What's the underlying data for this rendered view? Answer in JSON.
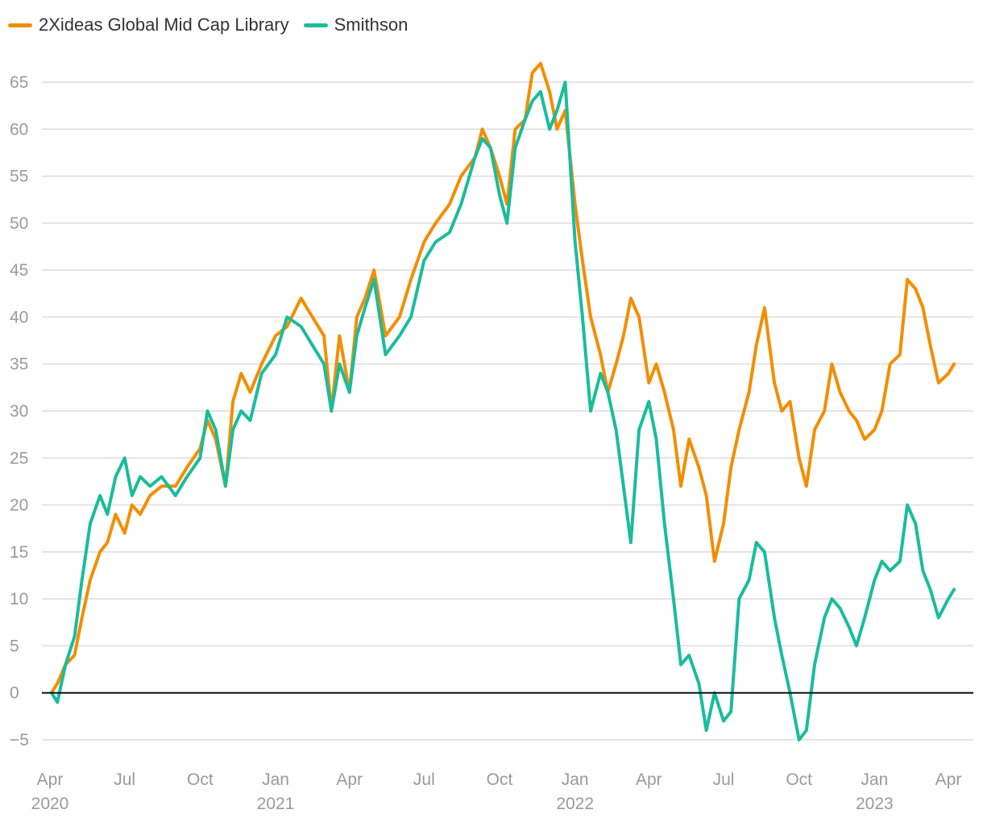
{
  "chart_data": {
    "type": "line",
    "title": "",
    "xlabel": "",
    "ylabel": "",
    "ylim": [
      -7,
      70
    ],
    "yticks": [
      -5,
      0,
      5,
      10,
      15,
      20,
      25,
      30,
      35,
      40,
      45,
      50,
      55,
      60,
      65
    ],
    "zero_line": true,
    "grid": "horizontal",
    "legend_position": "top-left",
    "x_tick_labels": [
      {
        "month": "Apr",
        "year": "2020",
        "date": "2020-04-01"
      },
      {
        "month": "Jul",
        "year": "",
        "date": "2020-07-01"
      },
      {
        "month": "Oct",
        "year": "",
        "date": "2020-10-01"
      },
      {
        "month": "Jan",
        "year": "2021",
        "date": "2021-01-01"
      },
      {
        "month": "Apr",
        "year": "",
        "date": "2021-04-01"
      },
      {
        "month": "Jul",
        "year": "",
        "date": "2021-07-01"
      },
      {
        "month": "Oct",
        "year": "",
        "date": "2021-10-01"
      },
      {
        "month": "Jan",
        "year": "2022",
        "date": "2022-01-01"
      },
      {
        "month": "Apr",
        "year": "",
        "date": "2022-04-01"
      },
      {
        "month": "Jul",
        "year": "",
        "date": "2022-07-01"
      },
      {
        "month": "Oct",
        "year": "",
        "date": "2022-10-01"
      },
      {
        "month": "Jan",
        "year": "2023",
        "date": "2023-01-01"
      },
      {
        "month": "Apr",
        "year": "",
        "date": "2023-04-01"
      }
    ],
    "series": [
      {
        "name": "2Xideas Global Mid Cap Library",
        "color": "#F28E00",
        "x": [
          "2020-04-03",
          "2020-04-10",
          "2020-04-20",
          "2020-05-01",
          "2020-05-10",
          "2020-05-20",
          "2020-06-01",
          "2020-06-10",
          "2020-06-20",
          "2020-07-01",
          "2020-07-10",
          "2020-07-20",
          "2020-08-01",
          "2020-08-15",
          "2020-09-01",
          "2020-09-15",
          "2020-10-01",
          "2020-10-10",
          "2020-10-20",
          "2020-11-01",
          "2020-11-10",
          "2020-11-20",
          "2020-12-01",
          "2020-12-15",
          "2021-01-01",
          "2021-01-15",
          "2021-02-01",
          "2021-02-15",
          "2021-03-01",
          "2021-03-10",
          "2021-03-20",
          "2021-04-01",
          "2021-04-10",
          "2021-04-20",
          "2021-05-01",
          "2021-05-15",
          "2021-06-01",
          "2021-06-15",
          "2021-07-01",
          "2021-07-15",
          "2021-08-01",
          "2021-08-15",
          "2021-09-01",
          "2021-09-10",
          "2021-09-20",
          "2021-10-01",
          "2021-10-10",
          "2021-10-20",
          "2021-11-01",
          "2021-11-10",
          "2021-11-20",
          "2021-12-01",
          "2021-12-10",
          "2021-12-20",
          "2022-01-01",
          "2022-01-10",
          "2022-01-20",
          "2022-02-01",
          "2022-02-10",
          "2022-02-20",
          "2022-03-01",
          "2022-03-10",
          "2022-03-20",
          "2022-04-01",
          "2022-04-10",
          "2022-04-20",
          "2022-05-01",
          "2022-05-10",
          "2022-05-20",
          "2022-06-01",
          "2022-06-10",
          "2022-06-20",
          "2022-07-01",
          "2022-07-10",
          "2022-07-20",
          "2022-08-01",
          "2022-08-10",
          "2022-08-20",
          "2022-09-01",
          "2022-09-10",
          "2022-09-20",
          "2022-10-01",
          "2022-10-10",
          "2022-10-20",
          "2022-11-01",
          "2022-11-10",
          "2022-11-20",
          "2022-12-01",
          "2022-12-10",
          "2022-12-20",
          "2023-01-01",
          "2023-01-10",
          "2023-01-20",
          "2023-02-01",
          "2023-02-10",
          "2023-02-20",
          "2023-03-01",
          "2023-03-10",
          "2023-03-20",
          "2023-04-01",
          "2023-04-08"
        ],
        "values": [
          0,
          1,
          3,
          4,
          8,
          12,
          15,
          16,
          19,
          17,
          20,
          19,
          21,
          22,
          22,
          24,
          26,
          29,
          27,
          22,
          31,
          34,
          32,
          35,
          38,
          39,
          42,
          40,
          38,
          30,
          38,
          32,
          40,
          42,
          45,
          38,
          40,
          44,
          48,
          50,
          52,
          55,
          57,
          60,
          58,
          55,
          52,
          60,
          61,
          66,
          67,
          64,
          60,
          62,
          52,
          46,
          40,
          36,
          32,
          35,
          38,
          42,
          40,
          33,
          35,
          32,
          28,
          22,
          27,
          24,
          21,
          14,
          18,
          24,
          28,
          32,
          37,
          41,
          33,
          30,
          31,
          25,
          22,
          28,
          30,
          35,
          32,
          30,
          29,
          27,
          28,
          30,
          35,
          36,
          44,
          43,
          41,
          37,
          33,
          34,
          35
        ],
        "line_width": 4
      },
      {
        "name": "Smithson",
        "color": "#1ABC9C",
        "x": [
          "2020-04-03",
          "2020-04-10",
          "2020-04-20",
          "2020-05-01",
          "2020-05-10",
          "2020-05-20",
          "2020-06-01",
          "2020-06-10",
          "2020-06-20",
          "2020-07-01",
          "2020-07-10",
          "2020-07-20",
          "2020-08-01",
          "2020-08-15",
          "2020-09-01",
          "2020-09-15",
          "2020-10-01",
          "2020-10-10",
          "2020-10-20",
          "2020-11-01",
          "2020-11-10",
          "2020-11-20",
          "2020-12-01",
          "2020-12-15",
          "2021-01-01",
          "2021-01-15",
          "2021-02-01",
          "2021-02-15",
          "2021-03-01",
          "2021-03-10",
          "2021-03-20",
          "2021-04-01",
          "2021-04-10",
          "2021-04-20",
          "2021-05-01",
          "2021-05-15",
          "2021-06-01",
          "2021-06-15",
          "2021-07-01",
          "2021-07-15",
          "2021-08-01",
          "2021-08-15",
          "2021-09-01",
          "2021-09-10",
          "2021-09-20",
          "2021-10-01",
          "2021-10-10",
          "2021-10-20",
          "2021-11-01",
          "2021-11-10",
          "2021-11-20",
          "2021-12-01",
          "2021-12-10",
          "2021-12-20",
          "2022-01-01",
          "2022-01-10",
          "2022-01-20",
          "2022-02-01",
          "2022-02-10",
          "2022-02-20",
          "2022-03-01",
          "2022-03-10",
          "2022-03-20",
          "2022-04-01",
          "2022-04-10",
          "2022-04-20",
          "2022-05-01",
          "2022-05-10",
          "2022-05-20",
          "2022-06-01",
          "2022-06-10",
          "2022-06-20",
          "2022-07-01",
          "2022-07-10",
          "2022-07-20",
          "2022-08-01",
          "2022-08-10",
          "2022-08-20",
          "2022-09-01",
          "2022-09-10",
          "2022-09-20",
          "2022-10-01",
          "2022-10-10",
          "2022-10-20",
          "2022-11-01",
          "2022-11-10",
          "2022-11-20",
          "2022-12-01",
          "2022-12-10",
          "2022-12-20",
          "2023-01-01",
          "2023-01-10",
          "2023-01-20",
          "2023-02-01",
          "2023-02-10",
          "2023-02-20",
          "2023-03-01",
          "2023-03-10",
          "2023-03-20",
          "2023-04-01",
          "2023-04-08"
        ],
        "values": [
          0,
          -1,
          3,
          6,
          12,
          18,
          21,
          19,
          23,
          25,
          21,
          23,
          22,
          23,
          21,
          23,
          25,
          30,
          28,
          22,
          28,
          30,
          29,
          34,
          36,
          40,
          39,
          37,
          35,
          30,
          35,
          32,
          38,
          41,
          44,
          36,
          38,
          40,
          46,
          48,
          49,
          52,
          57,
          59,
          58,
          53,
          50,
          58,
          61,
          63,
          64,
          60,
          62,
          65,
          48,
          40,
          30,
          34,
          32,
          28,
          22,
          16,
          28,
          31,
          27,
          18,
          10,
          3,
          4,
          1,
          -4,
          0,
          -3,
          -2,
          10,
          12,
          16,
          15,
          8,
          4,
          0,
          -5,
          -4,
          3,
          8,
          10,
          9,
          7,
          5,
          8,
          12,
          14,
          13,
          14,
          20,
          18,
          13,
          11,
          8,
          10,
          11
        ],
        "line_width": 4
      }
    ]
  }
}
